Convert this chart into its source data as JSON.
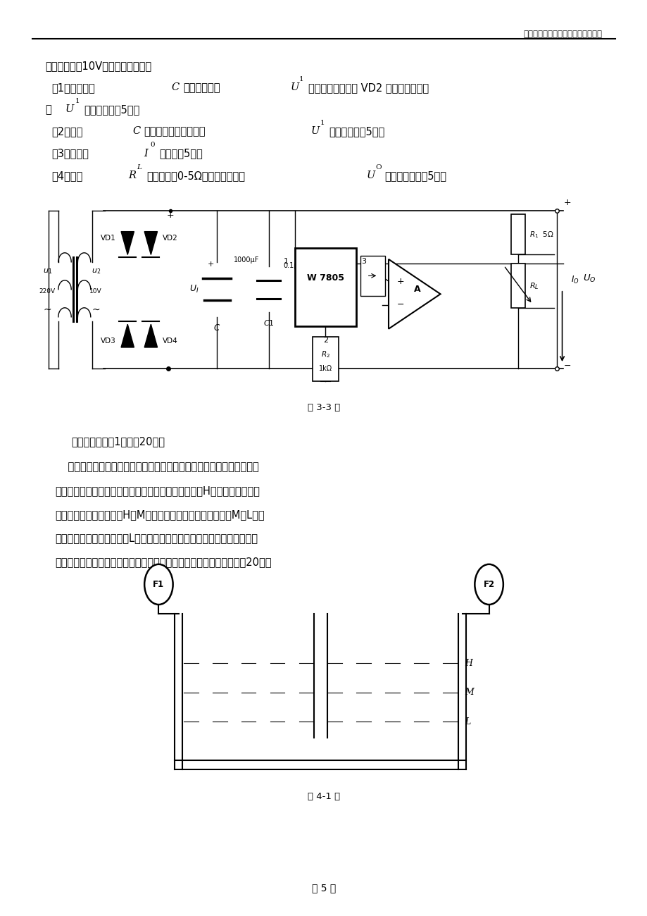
{
  "page_width": 9.2,
  "page_height": 13.0,
  "bg_color": "#ffffff",
  "header_text": "重庆理工大学硕士研究生试题专用纸",
  "line1": "电压有效值为10V，回答下列各问。",
  "line2a": "（1）假设电容",
  "line2b": "C",
  "line2c": "开路，求电压",
  "line2d": "U",
  "line2e": "1",
  "line2f": "的平均值，若此时 VD2 开路，求输出电",
  "line3a": "压",
  "line3b": "U",
  "line3c": "1",
  "line3d": "的平均值。（5分）",
  "line4a": "（2）电容",
  "line4b": "C",
  "line4c": "连接正常，求此时电压",
  "line4d": "U",
  "line4e": "1",
  "line4f": "的平均值。（5分）",
  "line5a": "（3）求电流",
  "line5b": "I",
  "line5c": "0",
  "line5d": "的值。（5分）",
  "line6a": "（4）假设",
  "line6b": "R",
  "line6c": "L",
  "line6d": "可调范围为0-5Ω，计算输出电压",
  "line6e": "U",
  "line6f": "O",
  "line6g": "的可调范围。（5分）",
  "caption1": "题 3-3 图",
  "sec4_title": "四、设计题（共1题，共20分）",
  "sec4_lines": [
    "    某热电厂制冷循环水箱装用大小两台水泵进行排水，如下图所示。要求",
    "设计一个水泵逻辑控制电路（启动、停止），当水位在H以上时，大小两台",
    "水泵均启动工作；水位在H、M之间时，大泵启动工作；水位在M、L之间",
    "时，小泵启动工作；水位在L以下时，两台水泵均停止排水。（要求列出真",
    "值表，写出与或非型表达式，用与或非门实现，注意约束项的使用）（20分）"
  ],
  "caption2": "题 4-1 图",
  "page_num": "第 5 页"
}
